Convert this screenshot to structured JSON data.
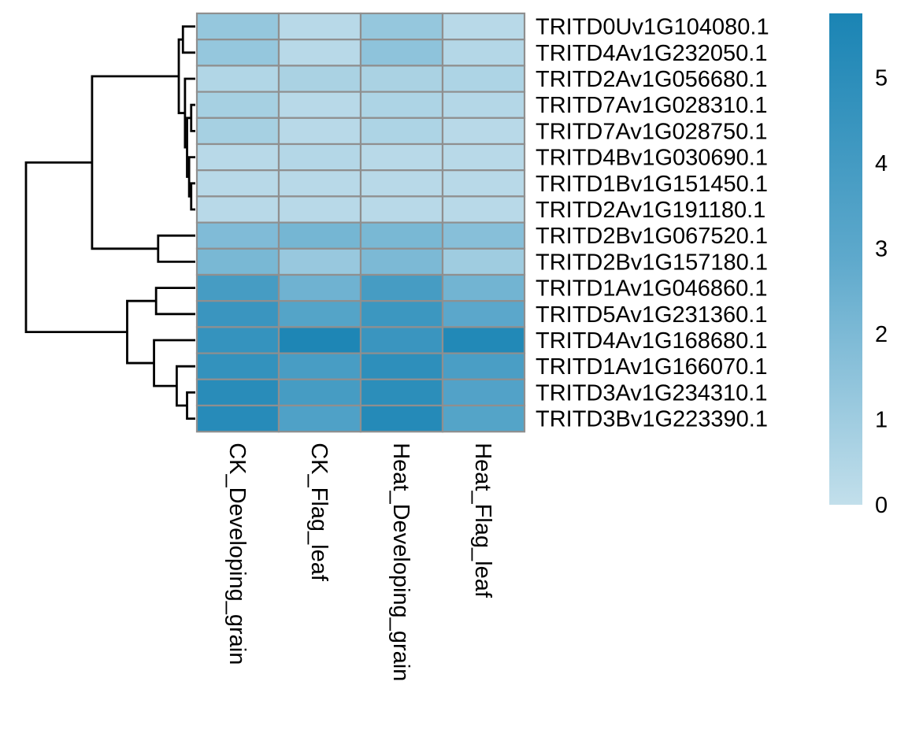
{
  "chart_data": {
    "type": "heatmap",
    "title": "",
    "xlabel": "",
    "ylabel": "",
    "columns": [
      "CK_Developing_grain",
      "CK_Flag_leaf",
      "Heat_Developing_grain",
      "Heat_Flag_leaf"
    ],
    "rows": [
      "TRITD0Uv1G104080.1",
      "TRITD4Av1G232050.1",
      "TRITD2Av1G056680.1",
      "TRITD7Av1G028310.1",
      "TRITD7Av1G028750.1",
      "TRITD4Bv1G030690.1",
      "TRITD1Bv1G151450.1",
      "TRITD2Av1G191180.1",
      "TRITD2Bv1G067520.1",
      "TRITD2Bv1G157180.1",
      "TRITD1Av1G046860.1",
      "TRITD5Av1G231360.1",
      "TRITD4Av1G168680.1",
      "TRITD1Av1G166070.1",
      "TRITD3Av1G234310.1",
      "TRITD3Bv1G223390.1"
    ],
    "values": [
      [
        1.3,
        0.3,
        1.3,
        0.3
      ],
      [
        1.3,
        0.3,
        1.5,
        0.4
      ],
      [
        0.5,
        0.7,
        0.7,
        0.6
      ],
      [
        0.8,
        0.3,
        0.6,
        0.4
      ],
      [
        0.8,
        0.3,
        0.6,
        0.3
      ],
      [
        0.3,
        0.4,
        0.3,
        0.3
      ],
      [
        0.3,
        0.3,
        0.3,
        0.3
      ],
      [
        0.3,
        0.3,
        0.3,
        0.3
      ],
      [
        1.9,
        2.2,
        2.1,
        1.7
      ],
      [
        2.1,
        1.2,
        2.0,
        1.0
      ],
      [
        3.9,
        2.4,
        3.9,
        2.3
      ],
      [
        4.4,
        3.3,
        4.3,
        3.0
      ],
      [
        4.6,
        5.6,
        4.4,
        5.4
      ],
      [
        4.7,
        3.8,
        4.9,
        3.7
      ],
      [
        5.1,
        3.9,
        5.0,
        3.4
      ],
      [
        5.2,
        3.5,
        5.3,
        3.3
      ]
    ],
    "color_scale": {
      "min": 0,
      "max": 5.75,
      "low_color": "#c2dfeb",
      "mid_color": "#5ea9cc",
      "high_color": "#1a84b4",
      "ticks": [
        0,
        1,
        2,
        3,
        4,
        5
      ]
    },
    "cell_border_color": "#8f8f8f",
    "row_dendrogram": {
      "merges": [
        {
          "a": "r:6",
          "b": "r:7",
          "h": 0.2
        },
        {
          "a": "r:5",
          "b": "n:0",
          "h": 0.3
        },
        {
          "a": "r:3",
          "b": "r:4",
          "h": 0.2
        },
        {
          "a": "n:2",
          "b": "n:1",
          "h": 0.4
        },
        {
          "a": "r:2",
          "b": "n:3",
          "h": 0.5
        },
        {
          "a": "r:0",
          "b": "r:1",
          "h": 0.6
        },
        {
          "a": "n:5",
          "b": "n:4",
          "h": 0.8
        },
        {
          "a": "r:8",
          "b": "r:9",
          "h": 1.8
        },
        {
          "a": "n:6",
          "b": "n:7",
          "h": 5.0
        },
        {
          "a": "r:14",
          "b": "r:15",
          "h": 0.4
        },
        {
          "a": "r:13",
          "b": "n:9",
          "h": 0.9
        },
        {
          "a": "r:12",
          "b": "n:10",
          "h": 2.0
        },
        {
          "a": "r:10",
          "b": "r:11",
          "h": 1.9
        },
        {
          "a": "n:12",
          "b": "n:11",
          "h": 3.3
        },
        {
          "a": "n:8",
          "b": "n:13",
          "h": 8.2
        }
      ]
    }
  }
}
